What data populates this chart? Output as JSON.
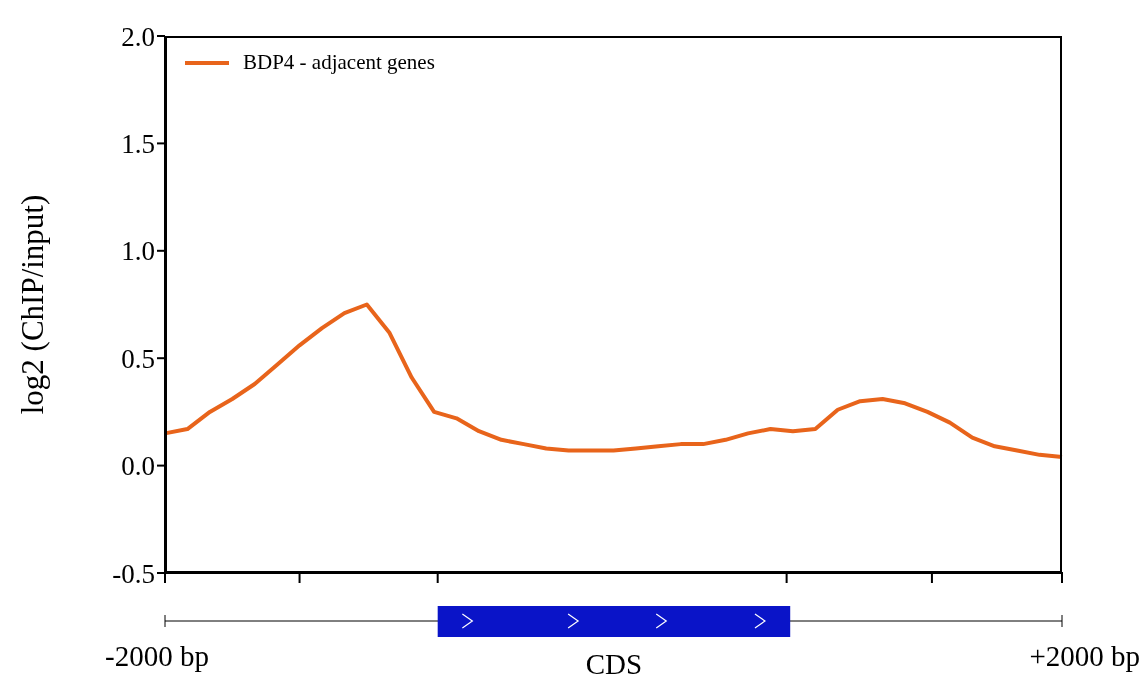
{
  "chart_data": {
    "type": "line",
    "ylabel": "log2 (ChIP/input)",
    "categories": [
      null,
      null,
      null,
      null,
      null,
      null,
      null,
      null,
      null,
      null,
      null,
      null,
      null,
      null,
      null,
      null,
      null,
      null,
      null,
      null,
      null,
      null,
      null,
      null,
      null,
      null,
      null,
      null,
      null,
      null,
      null,
      null,
      null,
      null,
      null,
      null,
      null,
      null,
      null,
      null,
      null
    ],
    "series": [
      {
        "name": "BDP4 - adjacent genes",
        "color": "#e8641b",
        "values": [
          0.15,
          0.17,
          0.25,
          0.31,
          0.38,
          0.47,
          0.56,
          0.64,
          0.71,
          0.75,
          0.62,
          0.41,
          0.25,
          0.22,
          0.16,
          0.12,
          0.1,
          0.08,
          0.07,
          0.07,
          0.07,
          0.08,
          0.09,
          0.1,
          0.1,
          0.12,
          0.15,
          0.17,
          0.16,
          0.17,
          0.26,
          0.3,
          0.31,
          0.29,
          0.25,
          0.2,
          0.13,
          0.09,
          0.07,
          0.05,
          0.04
        ]
      }
    ],
    "ylim": [
      -0.5,
      2.0
    ],
    "yticks": [
      {
        "value": -0.5,
        "label": "-0.5"
      },
      {
        "value": 0,
        "label": "0.0"
      },
      {
        "value": 0.5,
        "label": "0.5"
      },
      {
        "value": 1,
        "label": "1.0"
      },
      {
        "value": 1.5,
        "label": "1.5"
      },
      {
        "value": 2,
        "label": "2.0"
      }
    ],
    "tick_labels": "y",
    "grid": false,
    "legend": "top left",
    "marker": "none",
    "line_style": "solid",
    "annotations": [
      "-2000 bp",
      "CDS",
      "+2000 bp"
    ]
  }
}
